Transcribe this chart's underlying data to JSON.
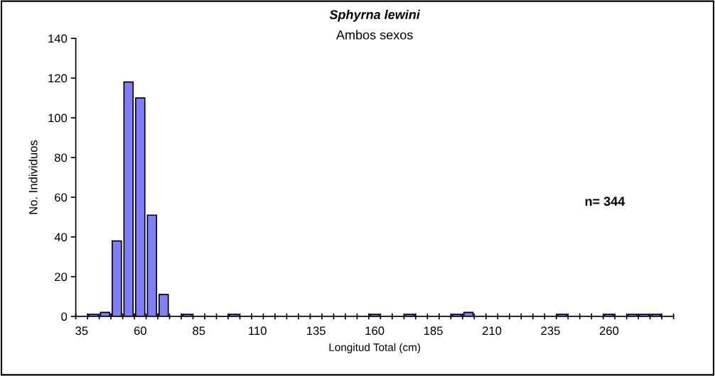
{
  "chart_data": {
    "type": "bar",
    "title": "Sphyrna lewini",
    "subtitle": "Ambos sexos",
    "xlabel": "Longitud Total (cm)",
    "ylabel": "No. Individuos",
    "categories": [
      "35",
      null,
      null,
      null,
      null,
      "60",
      null,
      null,
      null,
      null,
      "85",
      null,
      null,
      null,
      null,
      "110",
      null,
      null,
      null,
      null,
      "135",
      null,
      null,
      null,
      null,
      "160",
      null,
      null,
      null,
      null,
      "185",
      null,
      null,
      null,
      null,
      "210",
      null,
      null,
      null,
      null,
      "235",
      null,
      null,
      null,
      null,
      "260",
      null,
      null,
      null,
      null,
      null
    ],
    "values": [
      0,
      1,
      2,
      38,
      118,
      110,
      51,
      11,
      0,
      1,
      0,
      0,
      0,
      1,
      0,
      0,
      0,
      0,
      0,
      0,
      0,
      0,
      0,
      0,
      0,
      1,
      0,
      0,
      1,
      0,
      0,
      0,
      1,
      2,
      0,
      0,
      0,
      0,
      0,
      0,
      0,
      1,
      0,
      0,
      0,
      1,
      0,
      1,
      1,
      1,
      0
    ],
    "color": "#8080ff",
    "ylim": [
      0,
      140
    ],
    "yticks": [
      0,
      20,
      40,
      60,
      80,
      100,
      120,
      140
    ],
    "grid": false,
    "legend": false,
    "annotations": [
      "n= 344"
    ]
  }
}
